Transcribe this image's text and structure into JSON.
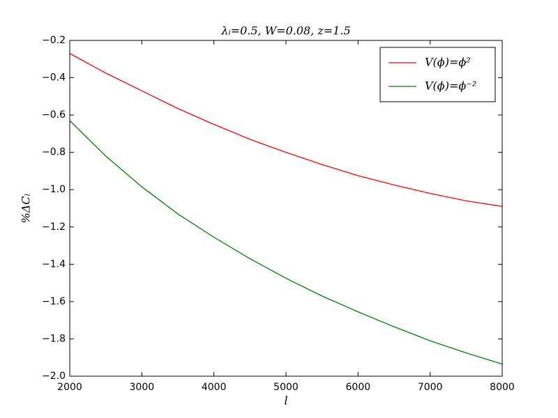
{
  "chart_data": {
    "type": "line",
    "title": "λᵢ=0.5, W=0.08, z=1.5",
    "x_label": "l",
    "y_label": "%ΔCₗ",
    "x": [
      2000,
      2500,
      3000,
      3500,
      4000,
      4500,
      5000,
      5500,
      6000,
      6500,
      7000,
      7500,
      8000
    ],
    "series": [
      {
        "name": "V(ϕ)=ϕ²",
        "color": "#ff0000",
        "values": [
          -0.27,
          -0.375,
          -0.47,
          -0.565,
          -0.65,
          -0.73,
          -0.8,
          -0.865,
          -0.925,
          -0.975,
          -1.02,
          -1.06,
          -1.09
        ]
      },
      {
        "name": "V(ϕ)=ϕ⁻²",
        "color": "#008000",
        "values": [
          -0.63,
          -0.82,
          -0.985,
          -1.13,
          -1.255,
          -1.37,
          -1.475,
          -1.57,
          -1.655,
          -1.735,
          -1.81,
          -1.875,
          -1.935
        ]
      }
    ],
    "xlim": [
      2000,
      8000
    ],
    "ylim": [
      -2.0,
      -0.2
    ],
    "xticks": [
      2000,
      3000,
      4000,
      5000,
      6000,
      7000,
      8000
    ],
    "yticks": [
      {
        "value": -2.0,
        "label": "−2.0"
      },
      {
        "value": -1.8,
        "label": "−1.8"
      },
      {
        "value": -1.6,
        "label": "−1.6"
      },
      {
        "value": -1.4,
        "label": "−1.4"
      },
      {
        "value": -1.2,
        "label": "−1.2"
      },
      {
        "value": -1.0,
        "label": "−1.0"
      },
      {
        "value": -0.8,
        "label": "−0.8"
      },
      {
        "value": -0.6,
        "label": "−0.6"
      },
      {
        "value": -0.4,
        "label": "−0.4"
      },
      {
        "value": -0.2,
        "label": "−0.2"
      }
    ],
    "grid": false,
    "legend": "upper right"
  }
}
